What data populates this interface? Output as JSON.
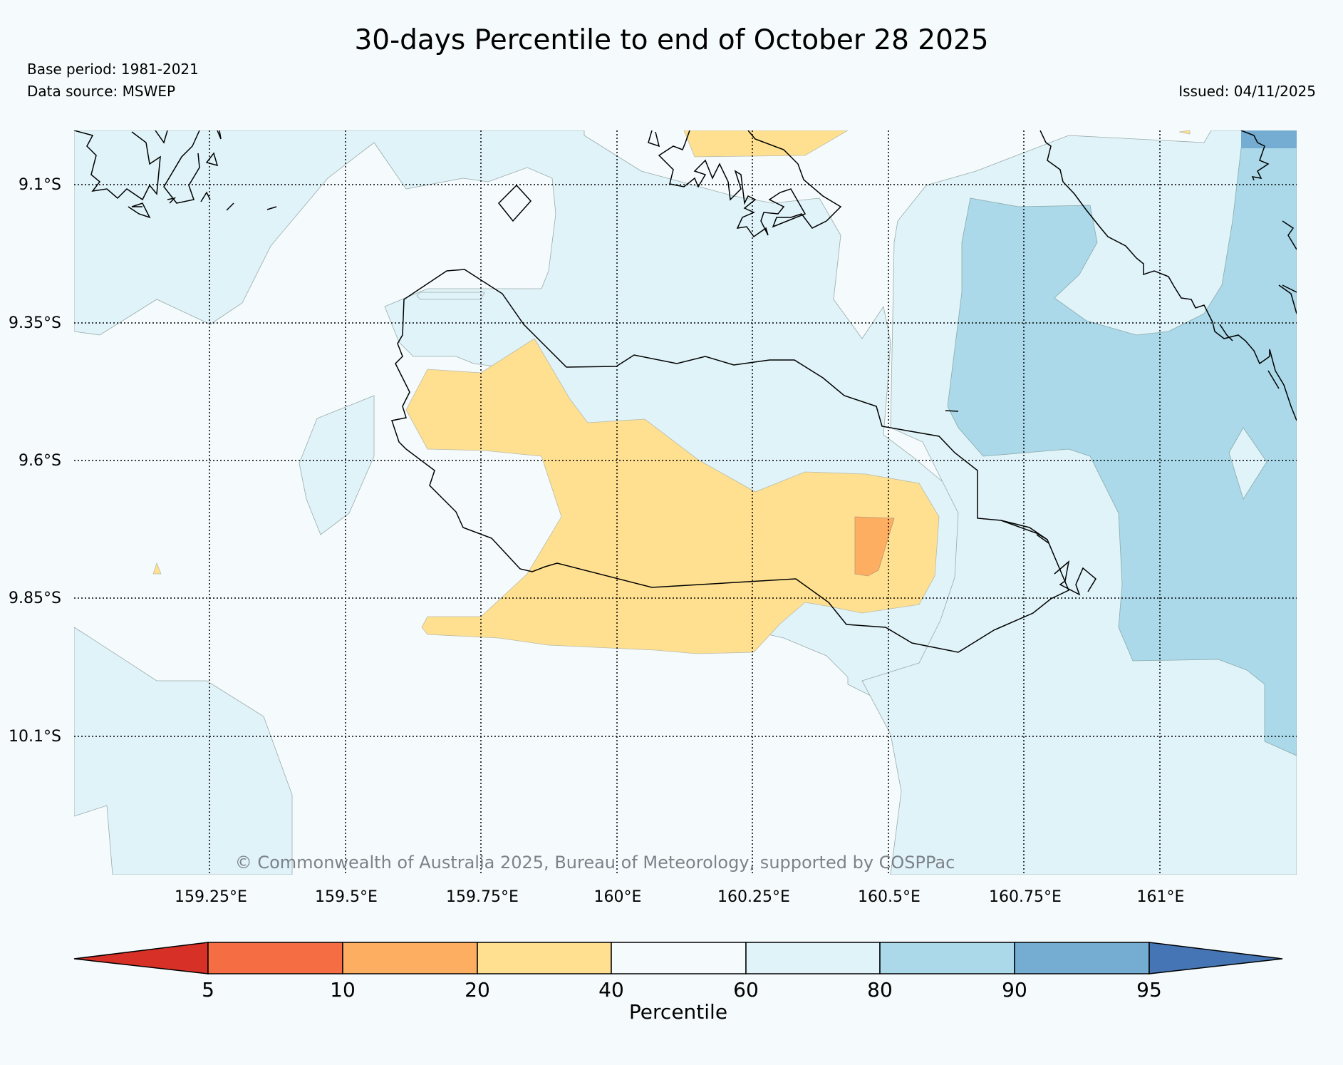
{
  "title": "30-days Percentile to end of October 28 2025",
  "base_period": "Base period: 1981-2021",
  "data_source": "Data source: MSWEP",
  "issued": "Issued: 04/11/2025",
  "copyright": "© Commonwealth of Australia 2025, Bureau of Meteorology, supported by COSPPac",
  "map": {
    "lat_labels": [
      "9.1°S",
      "9.35°S",
      "9.6°S",
      "9.85°S",
      "10.1°S"
    ],
    "lon_labels": [
      "159.25°E",
      "159.5°E",
      "159.75°E",
      "160°E",
      "160.25°E",
      "160.5°E",
      "160.75°E",
      "161°E"
    ]
  },
  "colorbar": {
    "label": "Percentile",
    "ticks": [
      "5",
      "10",
      "20",
      "40",
      "60",
      "80",
      "90",
      "95"
    ],
    "colors": [
      "#d73027",
      "#f46d43",
      "#fdae61",
      "#fee090",
      "#f5fbfd",
      "#e0f3f8",
      "#abd9e9",
      "#74add1",
      "#4575b4"
    ]
  },
  "legend_colors": {
    "p20_40": "#fee090",
    "p10_20": "#fdae61",
    "p60_80": "#e0f3f8",
    "p80_90": "#abd9e9",
    "p90_95": "#74add1"
  }
}
